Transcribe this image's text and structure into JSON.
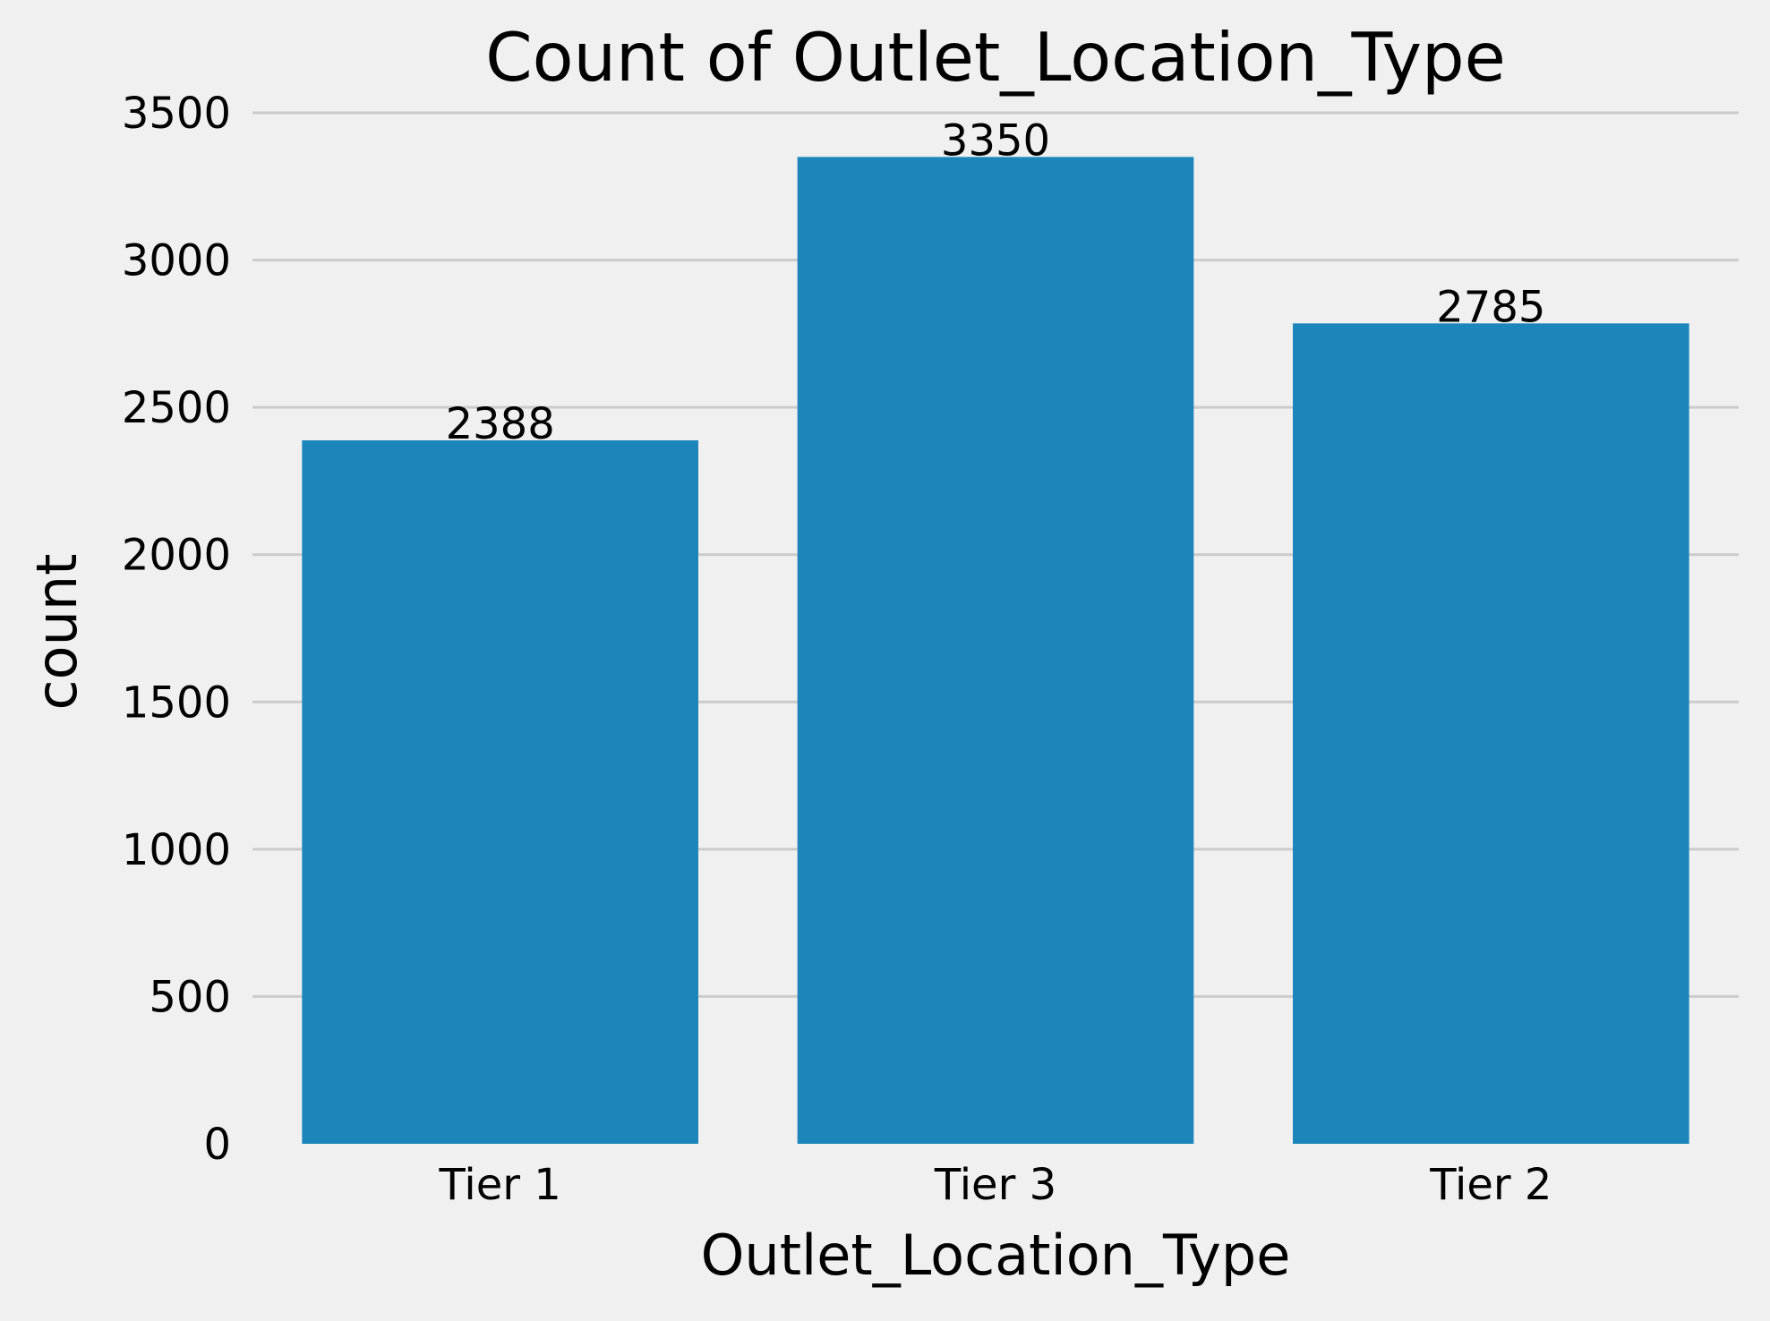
{
  "chart_data": {
    "type": "bar",
    "title": "Count of Outlet_Location_Type",
    "xlabel": "Outlet_Location_Type",
    "ylabel": "count",
    "categories": [
      "Tier 1",
      "Tier 3",
      "Tier 2"
    ],
    "values": [
      2388,
      3350,
      2785
    ],
    "data_labels": [
      "2388",
      "3350",
      "2785"
    ],
    "ylim": [
      0,
      3500
    ],
    "yticks": [
      0,
      500,
      1000,
      1500,
      2000,
      2500,
      3000,
      3500
    ],
    "ytick_labels": [
      "0",
      "500",
      "1000",
      "1500",
      "2000",
      "2500",
      "3000",
      "3500"
    ],
    "grid": "horizontal",
    "bar_color": "#1c86ba",
    "grid_color": "#cbcbcb",
    "background_color": "#f0f0f0"
  }
}
